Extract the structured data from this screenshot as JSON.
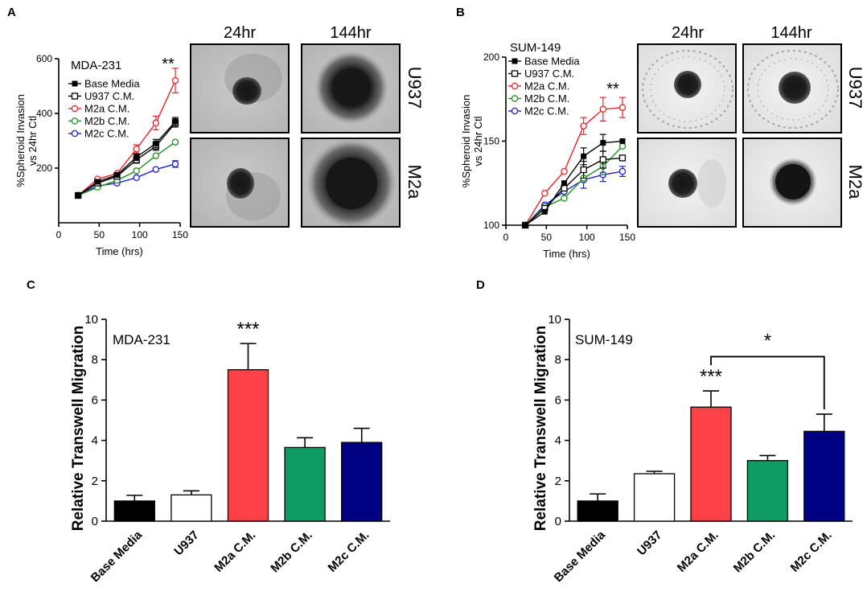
{
  "panels": {
    "a": "A",
    "b": "B",
    "c": "C",
    "d": "D"
  },
  "images": {
    "col_24": "24hr",
    "col_144": "144hr",
    "row_u937": "U937",
    "row_m2a": "M2a"
  },
  "chart_data": [
    {
      "id": "A",
      "type": "line",
      "title": "MDA-231",
      "xlabel": "Time (hrs)",
      "ylabel": "%Spheroid Invasion vs 24hr Ctl",
      "ylabel_lines": [
        "%Spheroid Invasion",
        "vs 24hr Ctl"
      ],
      "xlim": [
        0,
        150
      ],
      "ylim": [
        0,
        600
      ],
      "xticks": [
        "0",
        "50",
        "100",
        "150"
      ],
      "yticks": [
        "200",
        "400",
        "600"
      ],
      "x": [
        24,
        48,
        72,
        96,
        120,
        144
      ],
      "series": [
        {
          "name": "Base Media",
          "color": "#000000",
          "marker": "square-filled",
          "values": [
            100,
            150,
            175,
            240,
            290,
            370
          ],
          "err": [
            0,
            8,
            8,
            12,
            15,
            15
          ]
        },
        {
          "name": "U937 C.M.",
          "color": "#000000",
          "marker": "square-open",
          "values": [
            100,
            145,
            170,
            230,
            280,
            365
          ],
          "err": [
            0,
            8,
            8,
            12,
            15,
            15
          ]
        },
        {
          "name": "M2a C.M.",
          "color": "#e8262b",
          "marker": "circle-open",
          "values": [
            100,
            160,
            180,
            270,
            365,
            520
          ],
          "err": [
            0,
            0,
            0,
            15,
            25,
            45
          ]
        },
        {
          "name": "M2b C.M.",
          "color": "#1e8f1e",
          "marker": "circle-open",
          "values": [
            100,
            130,
            155,
            190,
            245,
            295
          ],
          "err": [
            0,
            0,
            0,
            0,
            0,
            0
          ]
        },
        {
          "name": "M2c C.M.",
          "color": "#1f1fd6",
          "marker": "circle-open",
          "values": [
            100,
            135,
            145,
            165,
            195,
            215
          ],
          "err": [
            0,
            0,
            0,
            0,
            0,
            12
          ]
        }
      ],
      "significance": "**"
    },
    {
      "id": "B",
      "type": "line",
      "title": "SUM-149",
      "xlabel": "Time (hrs)",
      "ylabel": "%Spheroid Invasion vs 24hr Ctl",
      "ylabel_lines": [
        "%Spheroid Invasion",
        "vs 24hr Ctl"
      ],
      "xlim": [
        0,
        150
      ],
      "ylim": [
        100,
        200
      ],
      "xticks": [
        "0",
        "50",
        "100",
        "150"
      ],
      "yticks": [
        "100",
        "150",
        "200"
      ],
      "x": [
        24,
        48,
        72,
        96,
        120,
        144
      ],
      "series": [
        {
          "name": "Base Media",
          "color": "#000000",
          "marker": "square-filled",
          "values": [
            100,
            108,
            125,
            141,
            149,
            150
          ],
          "err": [
            0,
            0,
            0,
            5,
            5,
            0
          ]
        },
        {
          "name": "U937 C.M.",
          "color": "#000000",
          "marker": "square-open",
          "values": [
            100,
            110,
            122,
            133,
            139,
            140
          ],
          "err": [
            0,
            0,
            0,
            5,
            5,
            0
          ]
        },
        {
          "name": "M2a C.M.",
          "color": "#e8262b",
          "marker": "circle-open",
          "values": [
            100,
            119,
            132,
            159,
            169,
            170
          ],
          "err": [
            0,
            0,
            0,
            5,
            7,
            6
          ]
        },
        {
          "name": "M2b C.M.",
          "color": "#1e8f1e",
          "marker": "circle-open",
          "values": [
            100,
            111,
            116,
            128,
            135,
            147
          ],
          "err": [
            0,
            0,
            0,
            0,
            5,
            0
          ]
        },
        {
          "name": "M2c C.M.",
          "color": "#1f1fd6",
          "marker": "circle-open",
          "values": [
            100,
            112,
            120,
            127,
            130,
            132
          ],
          "err": [
            0,
            0,
            0,
            5,
            4,
            3
          ]
        }
      ],
      "significance": "**"
    },
    {
      "id": "C",
      "type": "bar",
      "title": "MDA-231",
      "ylabel": "Relative Transwell Migration",
      "ylim": [
        0,
        10
      ],
      "yticks": [
        "0",
        "2",
        "4",
        "6",
        "8",
        "10"
      ],
      "categories": [
        "Base Media",
        "U937",
        "M2a C.M.",
        "M2b C.M.",
        "M2c C.M."
      ],
      "values": [
        1.0,
        1.3,
        7.5,
        3.65,
        3.9
      ],
      "err": [
        0.28,
        0.2,
        1.3,
        0.48,
        0.7
      ],
      "colors": [
        "#000000",
        "#ffffff",
        "#fe4146",
        "#0f9b63",
        "#000085"
      ],
      "significance": [
        "",
        "",
        "***",
        "",
        ""
      ]
    },
    {
      "id": "D",
      "type": "bar",
      "title": "SUM-149",
      "ylabel": "Relative Transwell Migration",
      "ylim": [
        0,
        10
      ],
      "yticks": [
        "0",
        "2",
        "4",
        "6",
        "8",
        "10"
      ],
      "categories": [
        "Base Media",
        "U937",
        "M2a C.M.",
        "M2b C.M.",
        "M2c C.M."
      ],
      "values": [
        1.0,
        2.35,
        5.65,
        3.0,
        4.45
      ],
      "err": [
        0.35,
        0.12,
        0.8,
        0.25,
        0.85
      ],
      "colors": [
        "#000000",
        "#ffffff",
        "#fe4146",
        "#0f9b63",
        "#000085"
      ],
      "significance": [
        "",
        "",
        "***",
        "",
        ""
      ],
      "bracket": {
        "from": 2,
        "to": 4,
        "label": "*"
      }
    }
  ]
}
